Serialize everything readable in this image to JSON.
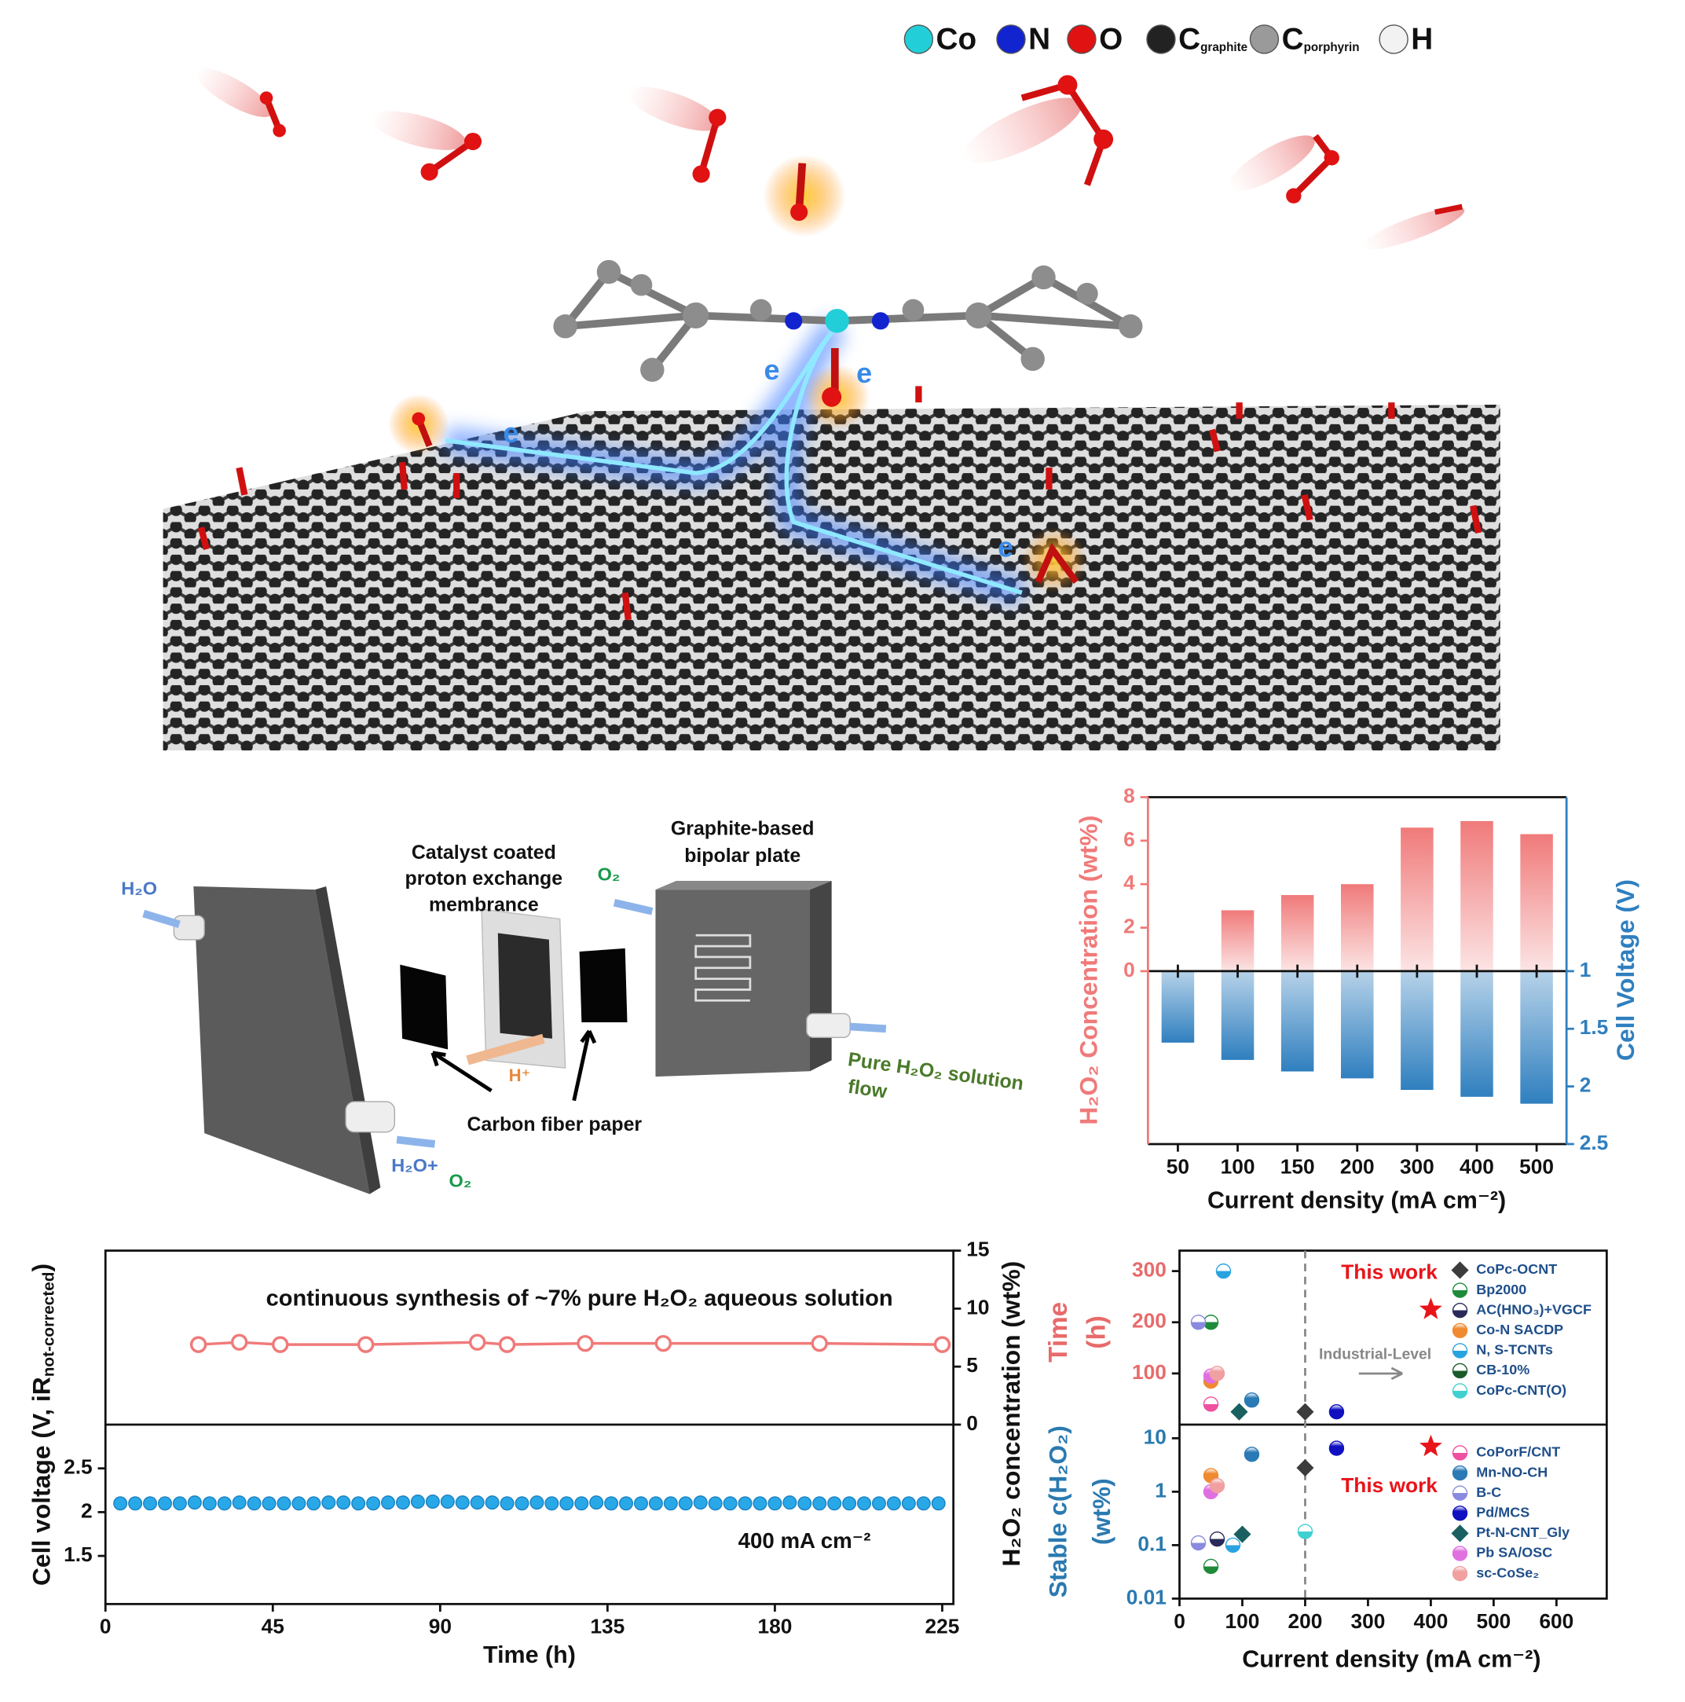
{
  "illustration": {
    "atom_legend": [
      {
        "symbol": "Co",
        "color": "#22cfd8"
      },
      {
        "symbol": "N",
        "color": "#1224d0"
      },
      {
        "symbol": "O",
        "color": "#e01212"
      },
      {
        "symbol": "C",
        "sub": "graphite",
        "color": "#222222"
      },
      {
        "symbol": "C",
        "sub": "porphyrin",
        "color": "#9a9a9a"
      },
      {
        "symbol": "H",
        "color": "#f2f2f2"
      }
    ],
    "electron_label": "e"
  },
  "device": {
    "h2o_in": "H₂O",
    "membrane": [
      "Catalyst coated",
      "proton exchange",
      "membrance"
    ],
    "plate": [
      "Graphite-based",
      "bipolar plate"
    ],
    "o2_in": "O₂",
    "proton": "H⁺",
    "carbon_paper": "Carbon fiber paper",
    "outlet": [
      "Pure H₂O₂ solution",
      "flow"
    ],
    "out_h2o": "H₂O+",
    "out_o2": "O₂"
  },
  "chart_data": [
    {
      "type": "bar",
      "categories": [
        "50",
        "100",
        "150",
        "200",
        "300",
        "400",
        "500"
      ],
      "xlabel": "Current density (mA cm⁻²)",
      "ylabel": "H₂O₂ Concentration (wt%)",
      "y2label": "Cell Voltage (V)",
      "ylim": [
        0,
        8
      ],
      "yticks": [
        0,
        2,
        4,
        6,
        8
      ],
      "y2lim": [
        1,
        2.5
      ],
      "y2ticks": [
        1,
        1.5,
        2,
        2.5
      ],
      "y2_inverted": true,
      "series": [
        {
          "color": "#f07a7a",
          "values": [
            null,
            2.8,
            3.5,
            4.0,
            6.6,
            6.9,
            6.3
          ]
        },
        {
          "color": "#2f7fbf",
          "axis": "y2",
          "values": [
            1.62,
            1.77,
            1.87,
            1.93,
            2.03,
            2.09,
            2.15
          ]
        }
      ]
    },
    {
      "type": "line",
      "annotation": "continuous synthesis of ~7% pure H₂O₂ aqueous solution",
      "condition": "400 mA cm⁻²",
      "xlabel": "Time (h)",
      "ylabel": "Cell voltage (V, iR",
      "ylabel_sub": "not-corrected",
      "ylabel_end": ")",
      "y2label": "H₂O₂  concentration (wt%)",
      "xlim": [
        0,
        228
      ],
      "xticks": [
        0,
        45,
        90,
        135,
        180,
        225
      ],
      "ylim": [
        0.95,
        3.0
      ],
      "yticks": [
        1.5,
        2,
        2.5
      ],
      "y2lim": [
        0,
        15
      ],
      "y2ticks": [
        0,
        5,
        10,
        15
      ],
      "series": [
        {
          "color": "#f07a7a",
          "axis": "y2",
          "x": [
            25,
            36,
            47,
            70,
            100,
            108,
            129,
            150,
            192,
            225
          ],
          "values": [
            6.9,
            7.1,
            6.9,
            6.9,
            7.1,
            6.9,
            7.0,
            7.0,
            7.0,
            6.9
          ]
        },
        {
          "color": "#29a8e8",
          "x": [
            4,
            8,
            12,
            16,
            20,
            24,
            28,
            32,
            36,
            40,
            44,
            48,
            52,
            56,
            60,
            64,
            68,
            72,
            76,
            80,
            84,
            88,
            92,
            96,
            100,
            104,
            108,
            112,
            116,
            120,
            124,
            128,
            132,
            136,
            140,
            144,
            148,
            152,
            156,
            160,
            164,
            168,
            172,
            176,
            180,
            184,
            188,
            192,
            196,
            200,
            204,
            208,
            212,
            216,
            220,
            224
          ],
          "values": [
            2.1,
            2.1,
            2.1,
            2.1,
            2.1,
            2.11,
            2.1,
            2.1,
            2.11,
            2.1,
            2.1,
            2.1,
            2.1,
            2.1,
            2.11,
            2.11,
            2.1,
            2.1,
            2.11,
            2.11,
            2.12,
            2.12,
            2.12,
            2.11,
            2.11,
            2.11,
            2.1,
            2.1,
            2.11,
            2.1,
            2.1,
            2.1,
            2.11,
            2.1,
            2.1,
            2.1,
            2.1,
            2.1,
            2.1,
            2.11,
            2.1,
            2.1,
            2.1,
            2.1,
            2.1,
            2.11,
            2.1,
            2.1,
            2.1,
            2.1,
            2.1,
            2.1,
            2.1,
            2.1,
            2.1,
            2.1
          ]
        }
      ]
    },
    {
      "type": "scatter",
      "xlabel": "Current density (mA cm⁻²)",
      "ylabel": "Time",
      "ylabel_unit": "(h)",
      "y2label": "Stable c(H₂O₂)",
      "y2label_unit": "(wt%)",
      "xlim": [
        0,
        680
      ],
      "xticks": [
        0,
        100,
        200,
        300,
        400,
        500,
        600
      ],
      "ylim": [
        0,
        340
      ],
      "yticks": [
        100,
        200,
        300
      ],
      "y2lim": [
        0.01,
        18
      ],
      "y2ticks": [
        0.01,
        0.1,
        1,
        10
      ],
      "y2_log": true,
      "vline": 200,
      "annotation": "Industrial-Level",
      "highlight": {
        "name": "This work",
        "color": "#e8141a",
        "time": {
          "x": [
            400
          ],
          "values": [
            225
          ]
        },
        "conc": {
          "x": [
            400
          ],
          "values": [
            7
          ]
        }
      },
      "series": [
        {
          "name": "CoPc-OCNT",
          "color": "#3c3c3c",
          "marker": "diamond",
          "time": {
            "x": [
              200
            ],
            "values": [
              25
            ]
          },
          "conc": {
            "x": [
              200
            ],
            "values": [
              2.8
            ]
          }
        },
        {
          "name": "Bp2000",
          "color": "#1e8a3a",
          "marker": "half",
          "time": {
            "x": [
              50
            ],
            "values": [
              200
            ]
          },
          "conc": {
            "x": [
              50
            ],
            "values": [
              0.04
            ]
          }
        },
        {
          "name": "AC(HNO₃)+VGCF",
          "color": "#2a2a5a",
          "marker": "half",
          "time": {
            "x": [],
            "values": []
          },
          "conc": {
            "x": [
              60
            ],
            "values": [
              0.13
            ]
          }
        },
        {
          "name": "Co-N SACDP",
          "color": "#f08a30",
          "marker": "ball",
          "time": {
            "x": [
              50
            ],
            "values": [
              85
            ]
          },
          "conc": {
            "x": [
              50
            ],
            "values": [
              2
            ]
          }
        },
        {
          "name": "N, S-TCNTs",
          "color": "#29a3e0",
          "marker": "half",
          "time": {
            "x": [
              70
            ],
            "values": [
              300
            ]
          },
          "conc": {
            "x": [
              85
            ],
            "values": [
              0.1
            ]
          }
        },
        {
          "name": "CB-10%",
          "color": "#1a5a2a",
          "marker": "half",
          "time": {
            "x": [],
            "values": []
          },
          "conc": {
            "x": [],
            "values": []
          }
        },
        {
          "name": "CoPc-CNT(O)",
          "color": "#40d0d0",
          "marker": "half",
          "time": {
            "x": [],
            "values": []
          },
          "conc": {
            "x": [
              200
            ],
            "values": [
              0.18
            ]
          }
        },
        {
          "name": "CoPorF/CNT",
          "color": "#f050a0",
          "marker": "half",
          "time": {
            "x": [
              50
            ],
            "values": [
              40
            ]
          },
          "conc": {
            "x": [],
            "values": []
          }
        },
        {
          "name": "Mn-NO-CH",
          "color": "#2a7ab5",
          "marker": "ball",
          "time": {
            "x": [
              115
            ],
            "values": [
              48
            ]
          },
          "conc": {
            "x": [
              115
            ],
            "values": [
              5
            ]
          }
        },
        {
          "name": "B-C",
          "color": "#8a8ae0",
          "marker": "half",
          "time": {
            "x": [
              30
            ],
            "values": [
              200
            ]
          },
          "conc": {
            "x": [
              30
            ],
            "values": [
              0.11
            ]
          }
        },
        {
          "name": "Pd/MCS",
          "color": "#1010c0",
          "marker": "ball",
          "time": {
            "x": [
              250
            ],
            "values": [
              25
            ]
          },
          "conc": {
            "x": [
              250
            ],
            "values": [
              6.5
            ]
          }
        },
        {
          "name": "Pt-N-CNT_Gly",
          "color": "#1a6060",
          "marker": "diamond",
          "time": {
            "x": [
              95
            ],
            "values": [
              25
            ]
          },
          "conc": {
            "x": [
              100
            ],
            "values": [
              0.16
            ]
          }
        },
        {
          "name": "Pb SA/OSC",
          "color": "#e070e0",
          "marker": "ball",
          "time": {
            "x": [
              50
            ],
            "values": [
              95
            ]
          },
          "conc": {
            "x": [
              50
            ],
            "values": [
              1
            ]
          }
        },
        {
          "name": "sc-CoSe₂",
          "color": "#f0a0a0",
          "marker": "ball",
          "time": {
            "x": [
              60
            ],
            "values": [
              100
            ]
          },
          "conc": {
            "x": [
              60
            ],
            "values": [
              1.3
            ]
          }
        }
      ]
    }
  ]
}
